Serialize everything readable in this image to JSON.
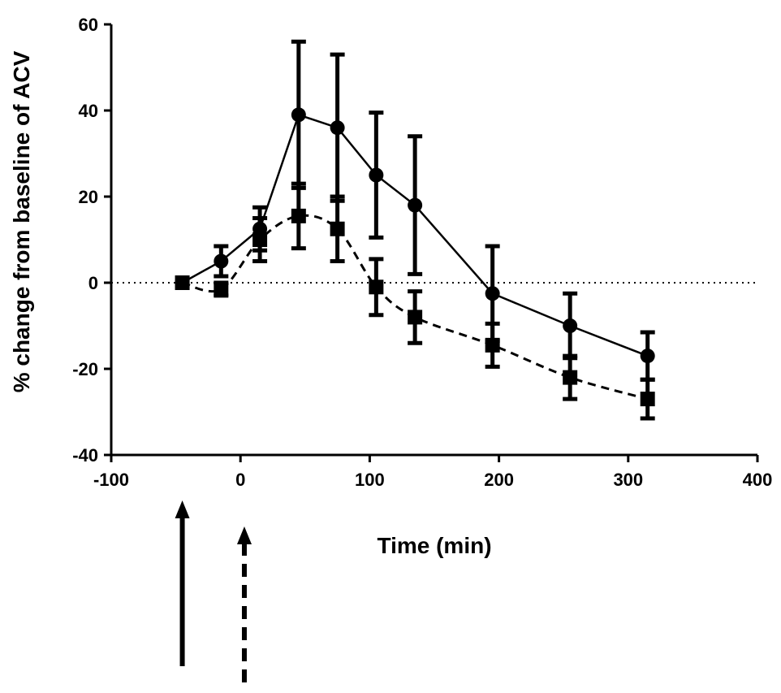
{
  "chart_data": {
    "type": "line",
    "title": "",
    "xlabel": "Time (min)",
    "ylabel": "% change from baseline of ACV",
    "xlim": [
      -100,
      400
    ],
    "ylim": [
      -40,
      60
    ],
    "xticks": [
      -100,
      0,
      100,
      200,
      300,
      400
    ],
    "yticks": [
      -40,
      -20,
      0,
      20,
      40,
      60
    ],
    "x_tick_labels": [
      "-100",
      "0",
      "100",
      "200",
      "300",
      "400"
    ],
    "y_tick_labels": [
      "-40",
      "-20",
      "0",
      "20",
      "40",
      "60"
    ],
    "grid": false,
    "legend": "none",
    "reference_line": {
      "y": 0,
      "style": "dotted"
    },
    "series": [
      {
        "marker": "circle",
        "line_style": "solid",
        "color": "#000000",
        "points": [
          {
            "x": -45,
            "y": 0,
            "err": 0
          },
          {
            "x": -15,
            "y": 5,
            "err": 3.5
          },
          {
            "x": 15,
            "y": 12.5,
            "err": 5
          },
          {
            "x": 45,
            "y": 39,
            "err": 17
          },
          {
            "x": 75,
            "y": 36,
            "err": 17
          },
          {
            "x": 105,
            "y": 25,
            "err": 14.5
          },
          {
            "x": 135,
            "y": 18,
            "err": 16
          },
          {
            "x": 195,
            "y": -2.5,
            "err": 11
          },
          {
            "x": 255,
            "y": -10,
            "err": 7.5
          },
          {
            "x": 315,
            "y": -17,
            "err": 5.5
          }
        ]
      },
      {
        "marker": "square",
        "line_style": "dashed",
        "color": "#000000",
        "points": [
          {
            "x": -45,
            "y": 0,
            "err": 0
          },
          {
            "x": -15,
            "y": -1.5,
            "err": 1.5
          },
          {
            "x": 15,
            "y": 10,
            "err": 5
          },
          {
            "x": 45,
            "y": 15.5,
            "err": 7.5
          },
          {
            "x": 75,
            "y": 12.5,
            "err": 7.5
          },
          {
            "x": 105,
            "y": -1,
            "err": 6.5
          },
          {
            "x": 135,
            "y": -8,
            "err": 6
          },
          {
            "x": 195,
            "y": -14.5,
            "err": 5
          },
          {
            "x": 255,
            "y": -22,
            "err": 5
          },
          {
            "x": 315,
            "y": -27,
            "err": 4.5
          }
        ]
      }
    ],
    "arrows": [
      {
        "x": -45,
        "line_style": "solid"
      },
      {
        "x": 3,
        "line_style": "dashed"
      }
    ]
  }
}
